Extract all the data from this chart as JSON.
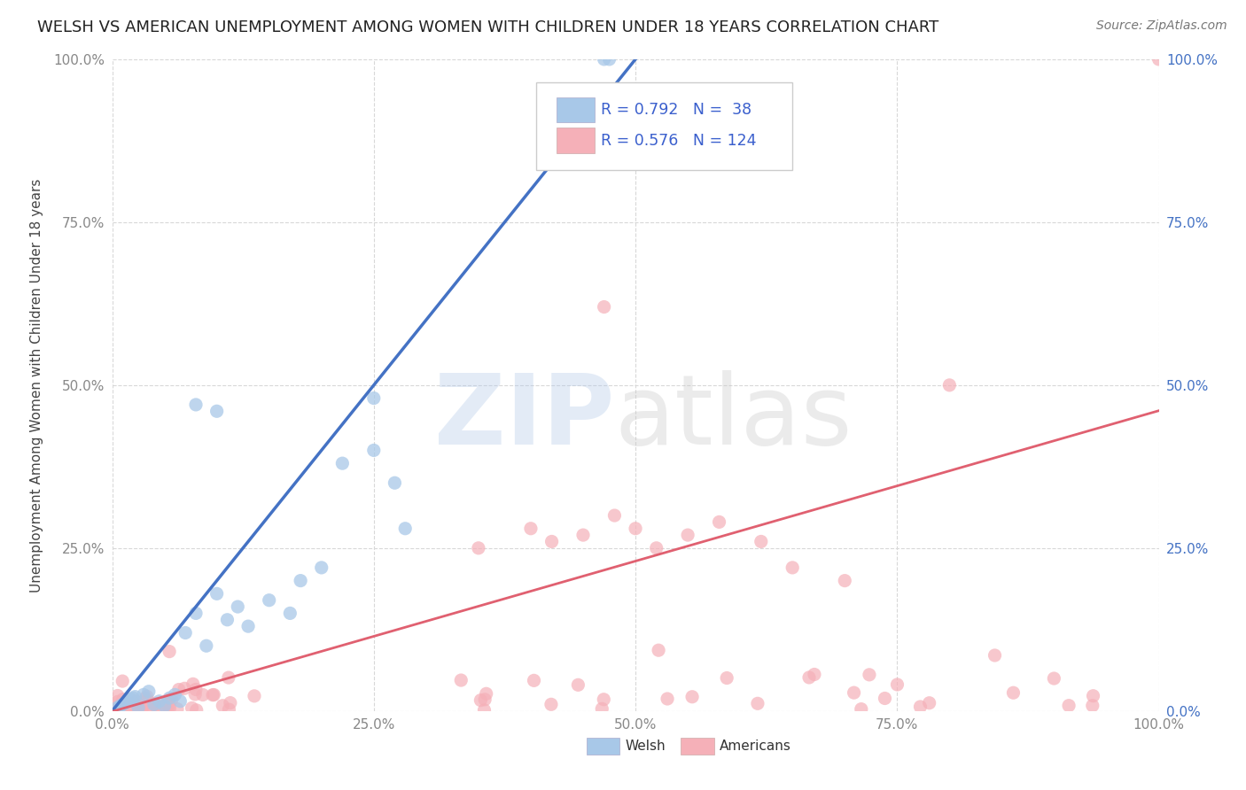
{
  "title": "WELSH VS AMERICAN UNEMPLOYMENT AMONG WOMEN WITH CHILDREN UNDER 18 YEARS CORRELATION CHART",
  "source": "Source: ZipAtlas.com",
  "ylabel": "Unemployment Among Women with Children Under 18 years",
  "xlabel_ticks": [
    "0.0%",
    "25.0%",
    "50.0%",
    "75.0%",
    "100.0%"
  ],
  "ylabel_ticks_left": [
    "0.0%",
    "25.0%",
    "50.0%",
    "75.0%",
    "100.0%"
  ],
  "ylabel_ticks_right": [
    "0.0%",
    "25.0%",
    "50.0%",
    "75.0%",
    "100.0%"
  ],
  "xlim": [
    0,
    1
  ],
  "ylim": [
    0,
    1
  ],
  "welsh_R": 0.792,
  "welsh_N": 38,
  "american_R": 0.576,
  "american_N": 124,
  "welsh_color": "#a8c8e8",
  "american_color": "#f5b0b8",
  "welsh_line_color": "#4472c4",
  "american_line_color": "#e06070",
  "background_color": "#ffffff",
  "legend_label_welsh": "Welsh",
  "legend_label_american": "Americans",
  "legend_text_color": "#3a5fcd",
  "title_fontsize": 13,
  "watermark_zip_color": "#b0c8e8",
  "watermark_atlas_color": "#c8c8c8",
  "grid_color": "#d8d8d8",
  "left_tick_color": "#888888",
  "right_tick_color": "#4472c4"
}
